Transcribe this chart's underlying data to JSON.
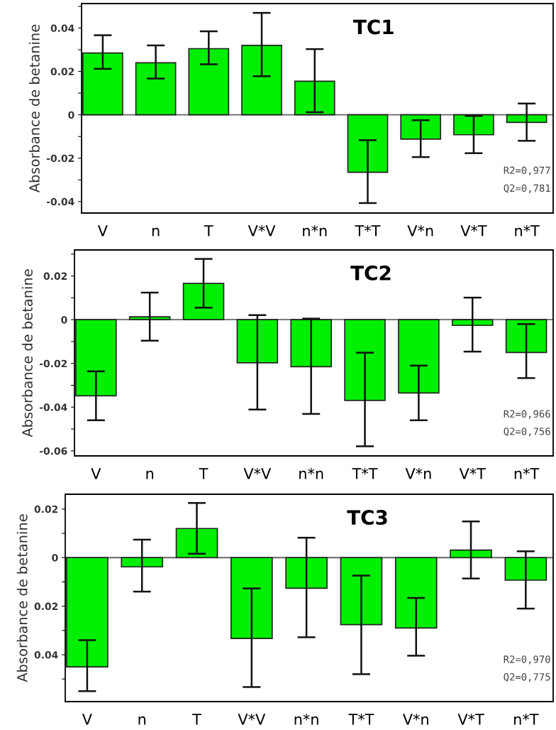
{
  "chart_data": [
    {
      "type": "bar",
      "title": "TC1",
      "ylabel": "Absorbance de betanine",
      "categories": [
        "V",
        "n",
        "T",
        "V*V",
        "n*n",
        "T*T",
        "V*n",
        "V*T",
        "n*T"
      ],
      "color": "#00ee00",
      "values": [
        0.0285,
        0.024,
        0.0305,
        0.032,
        0.0155,
        -0.0265,
        -0.0112,
        -0.0092,
        -0.0035
      ],
      "errors": [
        [
          0.0212,
          0.0367
        ],
        [
          0.0167,
          0.032
        ],
        [
          0.0233,
          0.0385
        ],
        [
          0.0178,
          0.047
        ],
        [
          0.0012,
          0.0303
        ],
        [
          -0.0407,
          -0.0117
        ],
        [
          -0.0195,
          -0.0025
        ],
        [
          -0.0177,
          -0.0005
        ],
        [
          -0.012,
          0.0052
        ]
      ],
      "ylim": [
        -0.0453,
        0.0513
      ],
      "yticks": [
        {
          "value": -0.04,
          "label": "-0.04"
        },
        {
          "value": -0.03,
          "label": null
        },
        {
          "value": -0.02,
          "label": "-0.02"
        },
        {
          "value": -0.01,
          "label": null
        },
        0,
        {
          "value": 0.01,
          "label": null
        },
        {
          "value": 0.02,
          "label": "0.02"
        },
        {
          "value": 0.03,
          "label": null
        },
        {
          "value": 0.04,
          "label": "0.04"
        },
        {
          "value": 0.05,
          "label": null
        }
      ],
      "annotations": [
        "R2=0,977",
        "Q2=0,781"
      ],
      "ref_lines": [
        {
          "axis": "y",
          "value": 0,
          "color": "#666666"
        }
      ],
      "grid": false,
      "legend": false
    },
    {
      "type": "bar",
      "title": "TC2",
      "ylabel": "Absorbance de betanine",
      "categories": [
        "V",
        "n",
        "T",
        "V*V",
        "n*n",
        "T*T",
        "V*n",
        "V*T",
        "n*T"
      ],
      "color": "#00ee00",
      "values": [
        -0.0348,
        0.0013,
        0.0166,
        -0.0197,
        -0.0215,
        -0.0369,
        -0.0335,
        -0.0026,
        -0.015
      ],
      "errors": [
        [
          -0.046,
          -0.0236
        ],
        [
          -0.0096,
          0.0124
        ],
        [
          0.0055,
          0.0278
        ],
        [
          -0.0411,
          0.0021
        ],
        [
          -0.0431,
          0.0005
        ],
        [
          -0.0579,
          -0.0151
        ],
        [
          -0.046,
          -0.021
        ],
        [
          -0.0146,
          0.0101
        ],
        [
          -0.0267,
          -0.002
        ]
      ],
      "ylim": [
        -0.0623,
        0.0319
      ],
      "yticks": [
        {
          "value": -0.06,
          "label": "-0.06"
        },
        {
          "value": -0.05,
          "label": null
        },
        {
          "value": -0.04,
          "label": "-0.04"
        },
        {
          "value": -0.03,
          "label": null
        },
        {
          "value": -0.02,
          "label": "-0.02"
        },
        {
          "value": -0.01,
          "label": null
        },
        0,
        {
          "value": 0.01,
          "label": null
        },
        {
          "value": 0.02,
          "label": "0.02"
        },
        {
          "value": 0.03,
          "label": null
        }
      ],
      "annotations": [
        "R2=0,966",
        "Q2=0,756"
      ],
      "ref_lines": [
        {
          "axis": "y",
          "value": 0,
          "color": "#666666"
        }
      ],
      "grid": false,
      "legend": false
    },
    {
      "type": "bar",
      "title": "TC3",
      "ylabel": "Absorbance de betanine",
      "categories": [
        "V",
        "n",
        "T",
        "V*V",
        "n*n",
        "T*T",
        "V*n",
        "V*T",
        "n*T"
      ],
      "color": "#00ee00",
      "values": [
        -0.045,
        -0.0038,
        0.012,
        -0.0333,
        -0.0126,
        -0.0276,
        -0.029,
        0.0031,
        -0.0093
      ],
      "errors": [
        [
          -0.055,
          -0.034
        ],
        [
          -0.014,
          0.0074
        ],
        [
          0.0016,
          0.0225
        ],
        [
          -0.0533,
          -0.0127
        ],
        [
          -0.0328,
          0.0082
        ],
        [
          -0.048,
          -0.0074
        ],
        [
          -0.0404,
          -0.0166
        ],
        [
          -0.0086,
          0.0149
        ],
        [
          -0.021,
          0.0026
        ]
      ],
      "ylim": [
        -0.0593,
        0.0261
      ],
      "yticks": [
        {
          "value": -0.05,
          "label": null
        },
        {
          "value": -0.04,
          "label": "0.04"
        },
        {
          "value": -0.03,
          "label": null
        },
        {
          "value": -0.02,
          "label": "0.02"
        },
        {
          "value": -0.01,
          "label": null
        },
        0,
        {
          "value": 0.01,
          "label": null
        },
        {
          "value": 0.02,
          "label": "0.02"
        }
      ],
      "annotations": [
        "R2=0,970",
        "Q2=0,775"
      ],
      "ref_lines": [
        {
          "axis": "y",
          "value": 0,
          "color": "#666666"
        }
      ],
      "grid": false,
      "legend": false
    }
  ]
}
